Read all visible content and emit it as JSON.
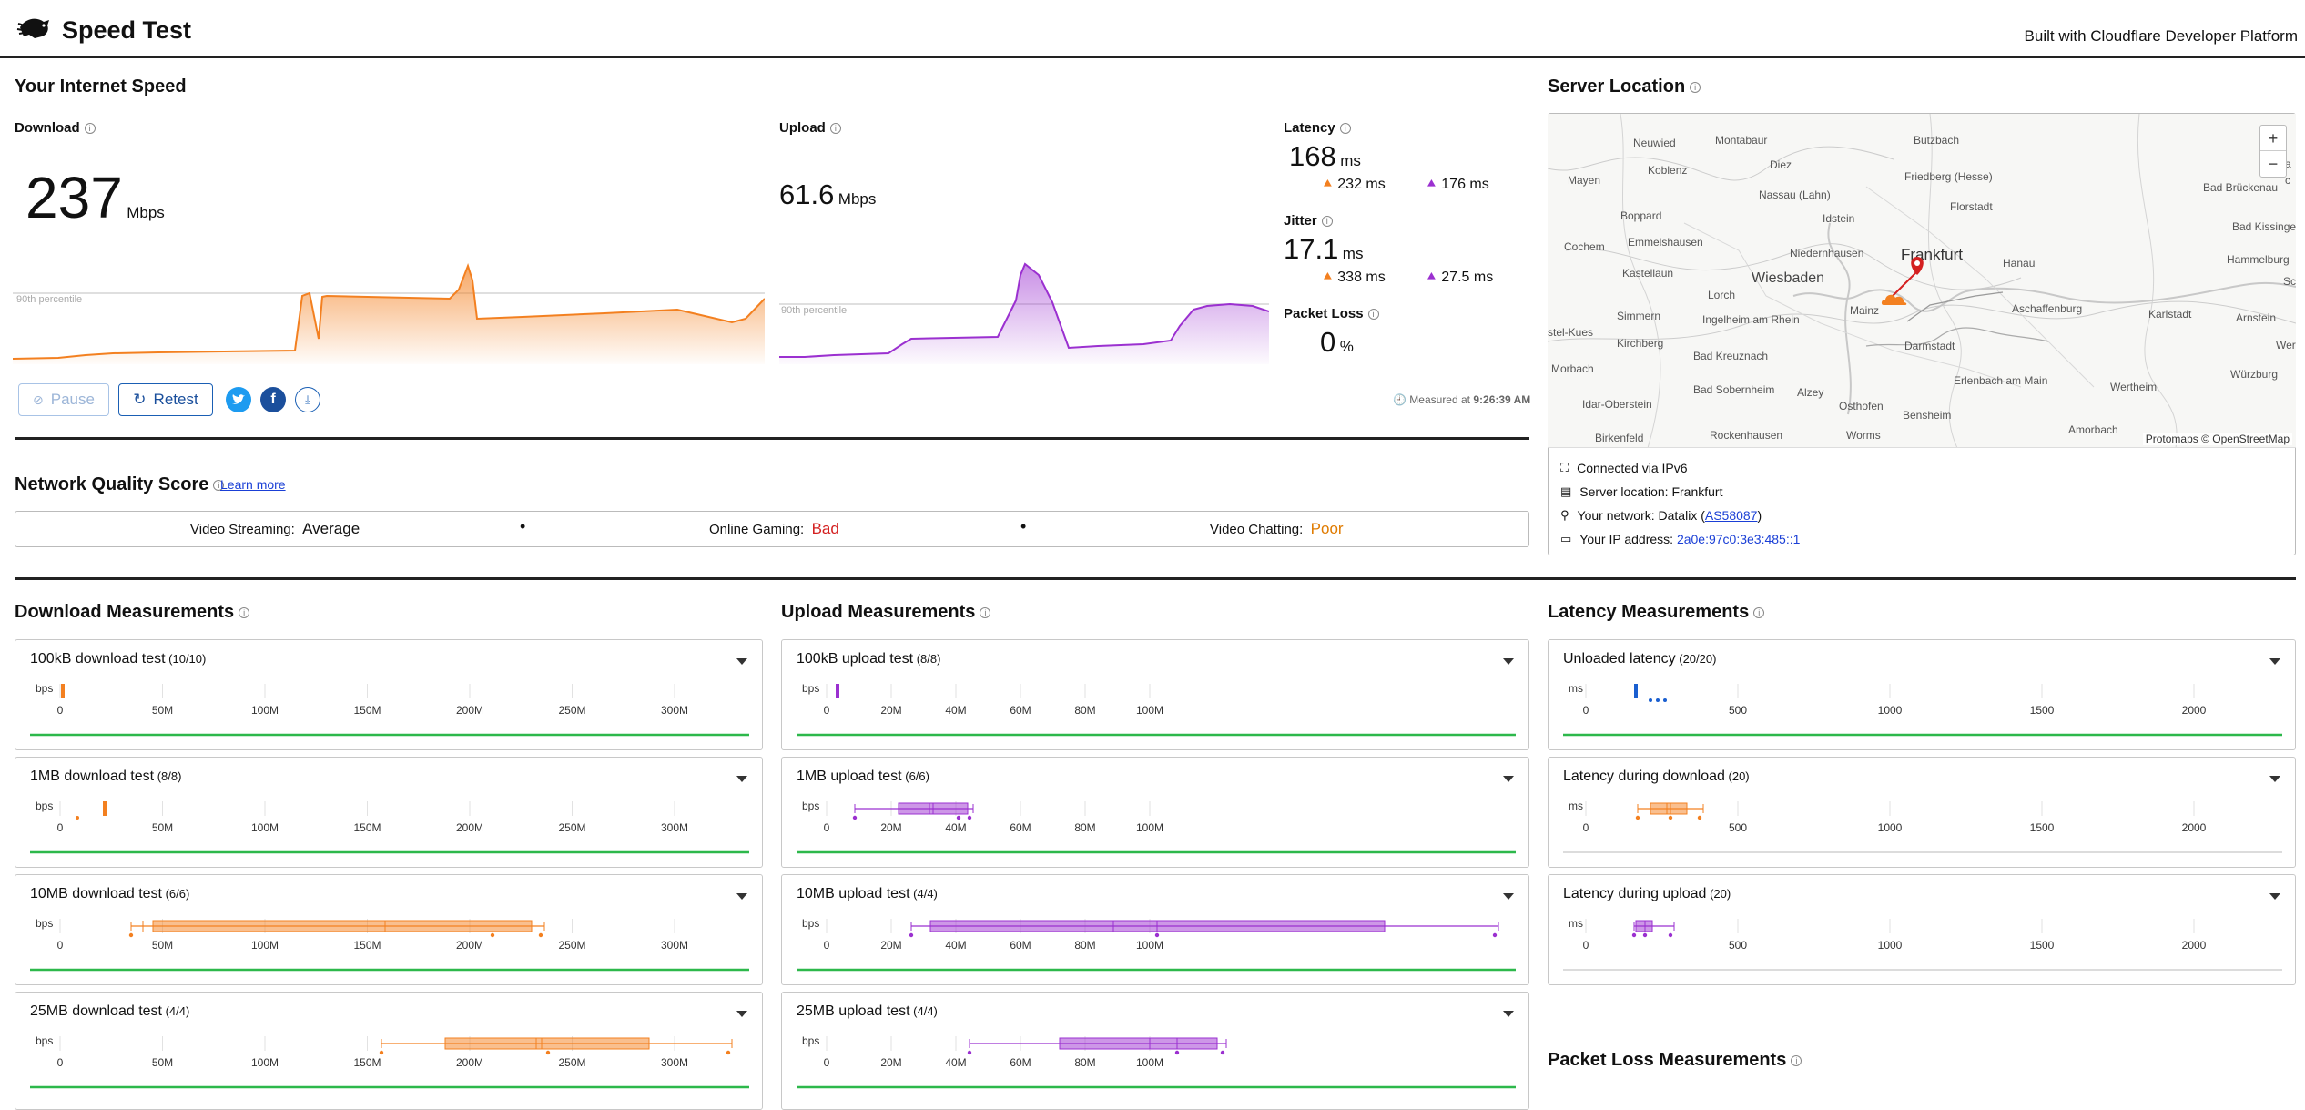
{
  "header": {
    "title": "Speed Test",
    "built_with": "Built with Cloudflare Developer Platform"
  },
  "speed": {
    "section_title": "Your Internet Speed",
    "download": {
      "label": "Download",
      "value": "237",
      "unit": "Mbps",
      "percentile_label": "90th percentile"
    },
    "upload": {
      "label": "Upload",
      "value": "61.6",
      "unit": "Mbps",
      "percentile_label": "90th percentile"
    },
    "latency": {
      "label": "Latency",
      "value": "168",
      "unit": "ms",
      "down": "232",
      "down_unit": "ms",
      "up": "176",
      "up_unit": "ms"
    },
    "jitter": {
      "label": "Jitter",
      "value": "17.1",
      "unit": "ms",
      "down": "338",
      "down_unit": "ms",
      "up": "27.5",
      "up_unit": "ms"
    },
    "packet_loss": {
      "label": "Packet Loss",
      "value": "0",
      "unit": "%"
    },
    "measured_at_label": "Measured at",
    "measured_at": "9:26:39 AM",
    "buttons": {
      "pause": "Pause",
      "retest": "Retest"
    }
  },
  "server": {
    "title": "Server Location",
    "attribution": "Protomaps © OpenStreetMap",
    "zoom_in": "+",
    "zoom_out": "−",
    "connected": "Connected via IPv6",
    "location_label": "Server location: Frankfurt",
    "network_label": "Your network: Datalix (",
    "network_asn": "AS58087",
    "network_close": ")",
    "ip_label": "Your IP address: ",
    "ip": "2a0e:97c0:3e3:485::1",
    "map_labels": [
      "Neuwied",
      "Montabaur",
      "Butzbach",
      "Diez",
      "Friedberg (Hesse)",
      "Bad Brückenau",
      "Mayen",
      "Koblenz",
      "Nassau (Lahn)",
      "Florstadt",
      "Bad Kissinge",
      "Idstein",
      "Cochem",
      "Emmelshausen",
      "Niedernhausen",
      "Frankfurt",
      "Hanau",
      "Hammelburg",
      "Boppard",
      "Wiesbaden",
      "Kastellaun",
      "Lorch",
      "Mainz",
      "Aschaffenburg",
      "Karlstadt",
      "Arnstein",
      "Simmern",
      "Ingelheim am Rhein",
      "Kirchberg",
      "Darmstadt",
      "Bad Kreuznach",
      "Erlenbach am Main",
      "Werth",
      "Wertheim",
      "Würzburg",
      "Idar-Oberstein",
      "Bad Sobernheim",
      "Alzey",
      "Osthofen",
      "Bensheim",
      "Amorbach",
      "Birkenfeld",
      "Rockenhausen",
      "Worms",
      "stel-Kues",
      "Morbach",
      "a",
      "c",
      "Sc"
    ]
  },
  "quality": {
    "title": "Network Quality Score",
    "learn_more": "Learn more",
    "streaming_label": "Video Streaming:",
    "streaming_value": "Average",
    "gaming_label": "Online Gaming:",
    "gaming_value": "Bad",
    "chatting_label": "Video Chatting:",
    "chatting_value": "Poor",
    "colors": {
      "bad": "#d42020",
      "poor": "#e07b00"
    }
  },
  "download_measurements": {
    "title": "Download Measurements",
    "unit": "bps",
    "ticks": [
      "0",
      "50M",
      "100M",
      "150M",
      "200M",
      "250M",
      "300M"
    ],
    "tests": [
      {
        "name": "100kB download test",
        "count": "(10/10)"
      },
      {
        "name": "1MB download test",
        "count": "(8/8)"
      },
      {
        "name": "10MB download test",
        "count": "(6/6)"
      },
      {
        "name": "25MB download test",
        "count": "(4/4)"
      }
    ]
  },
  "upload_measurements": {
    "title": "Upload Measurements",
    "unit": "bps",
    "ticks": [
      "0",
      "20M",
      "40M",
      "60M",
      "80M",
      "100M"
    ],
    "tests": [
      {
        "name": "100kB upload test",
        "count": "(8/8)"
      },
      {
        "name": "1MB upload test",
        "count": "(6/6)"
      },
      {
        "name": "10MB upload test",
        "count": "(4/4)"
      },
      {
        "name": "25MB upload test",
        "count": "(4/4)"
      }
    ]
  },
  "latency_measurements": {
    "title": "Latency Measurements",
    "unit": "ms",
    "ticks": [
      "0",
      "500",
      "1000",
      "1500",
      "2000"
    ],
    "tests": [
      {
        "name": "Unloaded latency",
        "count": "(20/20)"
      },
      {
        "name": "Latency during download",
        "count": "(20)"
      },
      {
        "name": "Latency during upload",
        "count": "(20)"
      }
    ]
  },
  "packet_loss_measurements": {
    "title": "Packet Loss Measurements"
  },
  "colors": {
    "download": "#f38020",
    "upload": "#9b30d0",
    "unloaded": "#1a5fd0",
    "ok_line": "#2db84b",
    "accent": "#1a5fb4"
  }
}
